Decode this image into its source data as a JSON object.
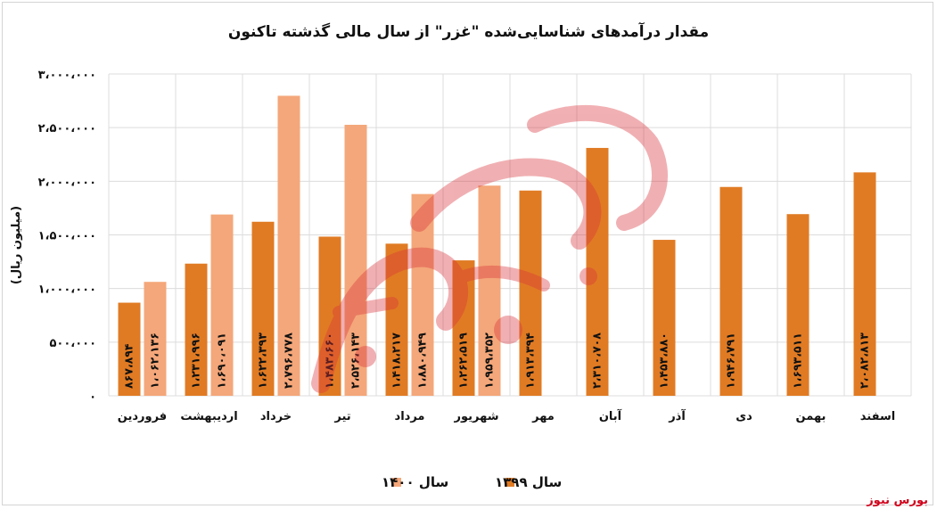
{
  "chart_data": {
    "type": "bar",
    "title": "مقدار درآمدهای شناسایی‌شده \"غزر\" از سال مالی گذشته تاکنون",
    "ylabel": "(میلیون ریال)",
    "xlabel": "",
    "ylim": [
      0,
      3000000
    ],
    "grid": true,
    "legend_position": "bottom",
    "yticks": [
      {
        "value": 0,
        "label": "۰"
      },
      {
        "value": 500000,
        "label": "۵۰۰،۰۰۰"
      },
      {
        "value": 1000000,
        "label": "۱،۰۰۰،۰۰۰"
      },
      {
        "value": 1500000,
        "label": "۱،۵۰۰،۰۰۰"
      },
      {
        "value": 2000000,
        "label": "۲،۰۰۰،۰۰۰"
      },
      {
        "value": 2500000,
        "label": "۲،۵۰۰،۰۰۰"
      },
      {
        "value": 3000000,
        "label": "۳،۰۰۰،۰۰۰"
      }
    ],
    "categories": [
      "فروردین",
      "اردیبهشت",
      "خرداد",
      "تیر",
      "مرداد",
      "شهریور",
      "مهر",
      "آبان",
      "آذر",
      "دی",
      "بهمن",
      "اسفند"
    ],
    "series": [
      {
        "name": "سال ۱۳۹۹",
        "color": "#e07b24",
        "values": [
          867894,
          1231996,
          1622393,
          1483660,
          1418217,
          1262519,
          1913394,
          2310708,
          1453880,
          1946791,
          1693511,
          2082813
        ],
        "labels": [
          "۸۶۷،۸۹۴",
          "۱،۲۳۱،۹۹۶",
          "۱،۶۲۲،۳۹۳",
          "۱،۴۸۳،۶۶۰",
          "۱،۴۱۸،۲۱۷",
          "۱،۲۶۲،۵۱۹",
          "۱،۹۱۳،۳۹۴",
          "۲،۳۱۰،۷۰۸",
          "۱،۴۵۳،۸۸۰",
          "۱،۹۴۶،۷۹۱",
          "۱،۶۹۳،۵۱۱",
          "۲،۰۸۲،۸۱۳"
        ]
      },
      {
        "name": "سال ۱۴۰۰",
        "color": "#f4a77a",
        "values": [
          1062136,
          1690091,
          2796778,
          2526143,
          1880949,
          1959352,
          null,
          null,
          null,
          null,
          null,
          null
        ],
        "labels": [
          "۱،۰۶۲،۱۳۶",
          "۱،۶۹۰،۰۹۱",
          "۲،۷۹۶،۷۷۸",
          "۲،۵۲۶،۱۴۳",
          "۱،۸۸۰،۹۴۹",
          "۱،۹۵۹،۳۵۲",
          "",
          "",
          "",
          "",
          "",
          ""
        ]
      }
    ]
  },
  "watermark_text": "بورس نیوز",
  "source_label": "بورس نیوز"
}
